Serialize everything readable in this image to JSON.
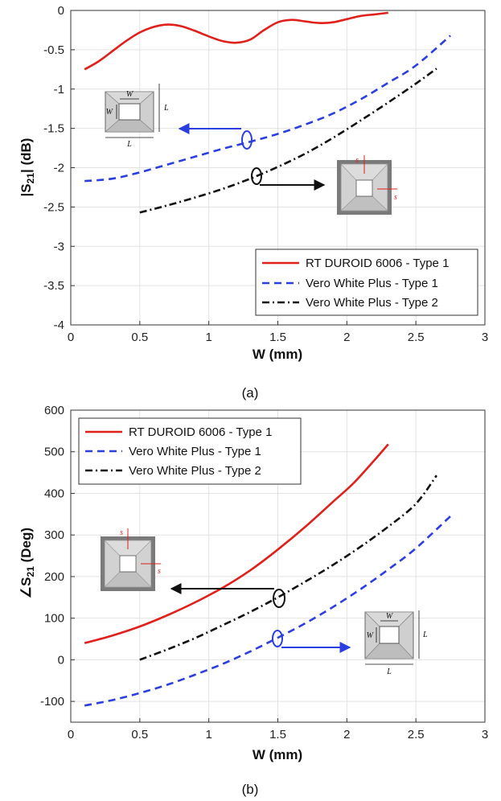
{
  "chart_data": [
    {
      "type": "line",
      "panel": "a",
      "caption": "(a)",
      "xlabel": "W (mm)",
      "ylabel_main": "|S",
      "ylabel_sub": "21",
      "ylabel_end": "| (dB)",
      "xlim": [
        0,
        3
      ],
      "ylim": [
        -4,
        0
      ],
      "xticks": [
        0,
        0.5,
        1,
        1.5,
        2,
        2.5,
        3
      ],
      "yticks": [
        -4,
        -3.5,
        -3,
        -2.5,
        -2,
        -1.5,
        -1,
        -0.5,
        0
      ],
      "grid": true,
      "legend_position": "bottom-right",
      "series": [
        {
          "name": "RT DUROID 6006 - Type 1",
          "color": "#e0201a",
          "dash": "solid",
          "x": [
            0.1,
            0.2,
            0.3,
            0.4,
            0.5,
            0.6,
            0.7,
            0.8,
            0.9,
            1.0,
            1.1,
            1.2,
            1.3,
            1.4,
            1.5,
            1.6,
            1.7,
            1.8,
            1.9,
            2.0,
            2.1,
            2.2,
            2.3
          ],
          "y": [
            -0.75,
            -0.65,
            -0.52,
            -0.39,
            -0.28,
            -0.21,
            -0.18,
            -0.2,
            -0.26,
            -0.33,
            -0.39,
            -0.41,
            -0.37,
            -0.25,
            -0.15,
            -0.12,
            -0.14,
            -0.16,
            -0.15,
            -0.11,
            -0.07,
            -0.05,
            -0.03
          ]
        },
        {
          "name": "Vero White Plus - Type 1",
          "color": "#2b3fe0",
          "dash": "dashed",
          "x": [
            0.1,
            0.3,
            0.5,
            0.7,
            0.9,
            1.1,
            1.3,
            1.5,
            1.7,
            1.9,
            2.1,
            2.3,
            2.5,
            2.75
          ],
          "y": [
            -2.17,
            -2.14,
            -2.06,
            -1.96,
            -1.86,
            -1.76,
            -1.67,
            -1.57,
            -1.45,
            -1.31,
            -1.13,
            -0.92,
            -0.7,
            -0.32
          ]
        },
        {
          "name": "Vero White Plus - Type 2",
          "color": "#111111",
          "dash": "dashdot",
          "x": [
            0.5,
            0.7,
            0.9,
            1.1,
            1.3,
            1.5,
            1.7,
            1.9,
            2.1,
            2.3,
            2.5,
            2.65
          ],
          "y": [
            -2.57,
            -2.48,
            -2.38,
            -2.27,
            -2.14,
            -1.99,
            -1.82,
            -1.62,
            -1.4,
            -1.17,
            -0.93,
            -0.74
          ]
        }
      ],
      "annotations": {
        "w_label": "W",
        "l_label": "L",
        "s_label": "s"
      }
    },
    {
      "type": "line",
      "panel": "b",
      "caption": "(b)",
      "xlabel": "W (mm)",
      "ylabel_main": "∠S",
      "ylabel_sub": "21",
      "ylabel_end": " (Deg)",
      "xlim": [
        0,
        3
      ],
      "ylim": [
        -150,
        600
      ],
      "xticks": [
        0,
        0.5,
        1,
        1.5,
        2,
        2.5,
        3
      ],
      "yticks": [
        -100,
        0,
        100,
        200,
        300,
        400,
        500,
        600
      ],
      "grid": true,
      "legend_position": "top-left",
      "series": [
        {
          "name": "RT DUROID 6006 - Type 1",
          "color": "#e0201a",
          "dash": "solid",
          "x": [
            0.1,
            0.3,
            0.5,
            0.7,
            0.9,
            1.1,
            1.3,
            1.5,
            1.7,
            1.9,
            2.05,
            2.2,
            2.3
          ],
          "y": [
            40,
            58,
            80,
            107,
            138,
            173,
            215,
            265,
            320,
            380,
            425,
            480,
            518
          ]
        },
        {
          "name": "Vero White Plus - Type 1",
          "color": "#2b3fe0",
          "dash": "dashed",
          "x": [
            0.1,
            0.3,
            0.5,
            0.7,
            0.9,
            1.1,
            1.3,
            1.5,
            1.7,
            1.9,
            2.1,
            2.3,
            2.5,
            2.75
          ],
          "y": [
            -110,
            -97,
            -80,
            -60,
            -36,
            -10,
            20,
            53,
            88,
            127,
            170,
            217,
            268,
            345
          ]
        },
        {
          "name": "Vero White Plus - Type 2",
          "color": "#111111",
          "dash": "dashdot",
          "x": [
            0.5,
            0.7,
            0.9,
            1.1,
            1.3,
            1.5,
            1.7,
            1.9,
            2.1,
            2.3,
            2.5,
            2.65
          ],
          "y": [
            0,
            25,
            52,
            83,
            115,
            150,
            188,
            228,
            272,
            320,
            375,
            443
          ]
        }
      ],
      "annotations": {
        "w_label": "W",
        "l_label": "L",
        "s_label": "s"
      }
    }
  ]
}
